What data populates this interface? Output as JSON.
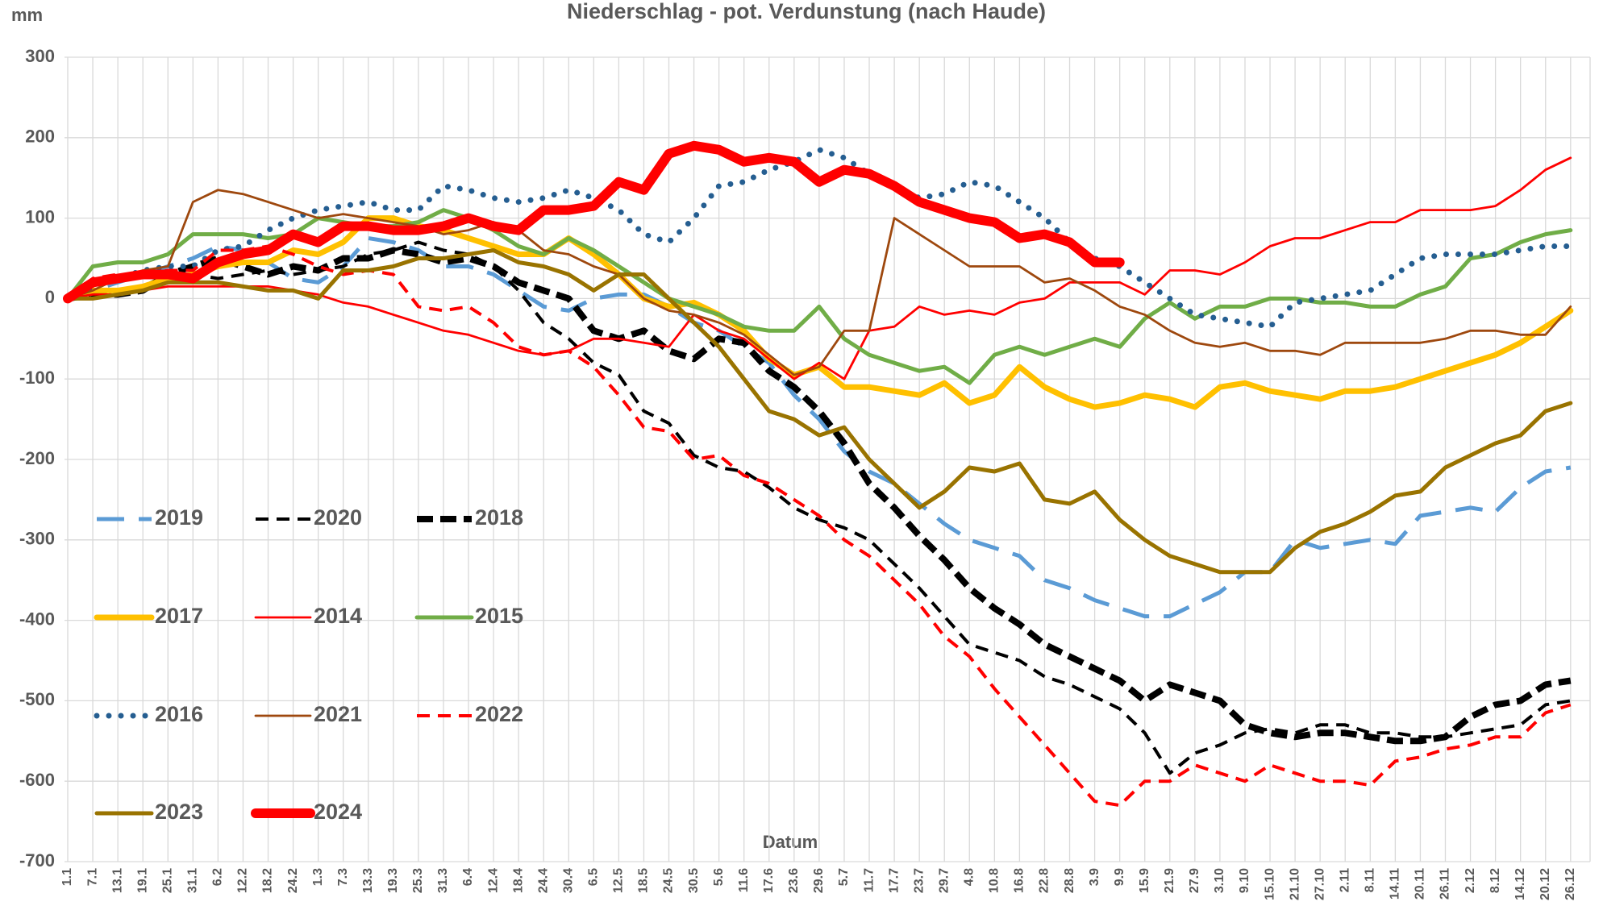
{
  "chart_data": {
    "type": "line",
    "title": "Niederschlag - pot. Verdunstung (nach Haude)",
    "y_label": "mm",
    "x_label": "Datum",
    "categories": [
      "1.1",
      "7.1",
      "13.1",
      "19.1",
      "25.1",
      "31.1",
      "6.2",
      "12.2",
      "18.2",
      "24.2",
      "1.3",
      "7.3",
      "13.3",
      "19.3",
      "25.3",
      "31.3",
      "6.4",
      "12.4",
      "18.4",
      "24.4",
      "30.4",
      "6.5",
      "12.5",
      "18.5",
      "24.5",
      "30.5",
      "5.6",
      "11.6",
      "17.6",
      "23.6",
      "29.6",
      "5.7",
      "11.7",
      "17.7",
      "23.7",
      "29.7",
      "4.8",
      "10.8",
      "16.8",
      "22.8",
      "28.8",
      "3.9",
      "9.9",
      "15.9",
      "21.9",
      "27.9",
      "3.10",
      "9.10",
      "15.10",
      "21.10",
      "27.10",
      "2.11",
      "8.11",
      "14.11",
      "20.11",
      "26.11",
      "2.12",
      "8.12",
      "14.12",
      "20.12",
      "26.12"
    ],
    "ylim": [
      -700,
      300
    ],
    "yticks": [
      300,
      200,
      100,
      0,
      -100,
      -200,
      -300,
      -400,
      -500,
      -600,
      -700
    ],
    "grid": true,
    "series": [
      {
        "name": "2019",
        "color": "#5b9bd5",
        "line_style": "dash-long",
        "values": [
          0,
          10,
          20,
          30,
          40,
          50,
          65,
          60,
          45,
          25,
          20,
          40,
          75,
          70,
          60,
          40,
          40,
          30,
          10,
          -10,
          -15,
          0,
          5,
          5,
          -10,
          -30,
          -40,
          -60,
          -80,
          -120,
          -150,
          -190,
          -215,
          -230,
          -255,
          -280,
          -300,
          -310,
          -320,
          -350,
          -360,
          -375,
          -385,
          -395,
          -395,
          -380,
          -365,
          -340,
          -340,
          -300,
          -310,
          -305,
          -300,
          -305,
          -270,
          -265,
          -260,
          -265,
          -235,
          -215,
          -210
        ]
      },
      {
        "name": "2020",
        "color": "#000000",
        "line_style": "dash",
        "values": [
          0,
          5,
          10,
          15,
          30,
          30,
          25,
          30,
          35,
          30,
          35,
          40,
          55,
          60,
          70,
          60,
          55,
          40,
          10,
          -30,
          -50,
          -80,
          -95,
          -140,
          -155,
          -195,
          -210,
          -215,
          -235,
          -260,
          -275,
          -285,
          -300,
          -330,
          -360,
          -395,
          -430,
          -440,
          -450,
          -470,
          -480,
          -495,
          -510,
          -540,
          -590,
          -565,
          -555,
          -540,
          -535,
          -540,
          -530,
          -530,
          -540,
          -540,
          -545,
          -545,
          -540,
          -535,
          -530,
          -505,
          -500
        ]
      },
      {
        "name": "2018",
        "color": "#000000",
        "line_style": "dash-heavy",
        "values": [
          0,
          5,
          5,
          10,
          30,
          40,
          50,
          40,
          30,
          40,
          35,
          50,
          50,
          60,
          55,
          45,
          50,
          40,
          20,
          10,
          0,
          -40,
          -50,
          -40,
          -65,
          -75,
          -50,
          -55,
          -90,
          -110,
          -140,
          -180,
          -230,
          -260,
          -295,
          -325,
          -360,
          -385,
          -405,
          -430,
          -445,
          -460,
          -475,
          -500,
          -480,
          -490,
          -500,
          -530,
          -540,
          -545,
          -540,
          -540,
          -545,
          -550,
          -550,
          -545,
          -520,
          -505,
          -500,
          -480,
          -475
        ]
      },
      {
        "name": "2017",
        "color": "#ffc000",
        "line_style": "solid-heavy",
        "values": [
          0,
          10,
          10,
          15,
          25,
          30,
          40,
          45,
          45,
          60,
          55,
          70,
          100,
          100,
          90,
          85,
          75,
          65,
          55,
          55,
          75,
          55,
          30,
          0,
          -10,
          -5,
          -20,
          -40,
          -75,
          -95,
          -85,
          -110,
          -110,
          -115,
          -120,
          -105,
          -130,
          -120,
          -85,
          -110,
          -125,
          -135,
          -130,
          -120,
          -125,
          -135,
          -110,
          -105,
          -115,
          -120,
          -125,
          -115,
          -115,
          -110,
          -100,
          -90,
          -80,
          -70,
          -55,
          -35,
          -15
        ]
      },
      {
        "name": "2014",
        "color": "#ff0000",
        "line_style": "solid",
        "values": [
          0,
          5,
          5,
          10,
          15,
          15,
          15,
          15,
          15,
          10,
          5,
          -5,
          -10,
          -20,
          -30,
          -40,
          -45,
          -55,
          -65,
          -70,
          -65,
          -50,
          -50,
          -55,
          -60,
          -20,
          -40,
          -50,
          -75,
          -100,
          -80,
          -100,
          -40,
          -35,
          -10,
          -20,
          -15,
          -20,
          -5,
          0,
          20,
          20,
          20,
          5,
          35,
          35,
          30,
          45,
          65,
          75,
          75,
          85,
          95,
          95,
          110,
          110,
          110,
          115,
          135,
          160,
          175
        ]
      },
      {
        "name": "2015",
        "color": "#70ad47",
        "line_style": "solid-medium",
        "values": [
          0,
          40,
          45,
          45,
          55,
          80,
          80,
          80,
          75,
          80,
          100,
          95,
          90,
          90,
          95,
          110,
          100,
          85,
          65,
          55,
          75,
          60,
          40,
          20,
          0,
          -10,
          -20,
          -35,
          -40,
          -40,
          -10,
          -50,
          -70,
          -80,
          -90,
          -85,
          -105,
          -70,
          -60,
          -70,
          -60,
          -50,
          -60,
          -25,
          -5,
          -25,
          -10,
          -10,
          0,
          0,
          -5,
          -5,
          -10,
          -10,
          5,
          15,
          50,
          55,
          70,
          80,
          85
        ]
      },
      {
        "name": "2016",
        "color": "#255e91",
        "line_style": "dot",
        "values": [
          0,
          15,
          25,
          35,
          40,
          40,
          60,
          65,
          85,
          100,
          110,
          115,
          120,
          110,
          110,
          140,
          135,
          125,
          120,
          125,
          135,
          125,
          110,
          80,
          70,
          100,
          140,
          145,
          160,
          170,
          185,
          175,
          155,
          140,
          125,
          130,
          145,
          140,
          120,
          100,
          70,
          50,
          40,
          20,
          0,
          -20,
          -25,
          -30,
          -35,
          -5,
          0,
          5,
          10,
          30,
          50,
          55,
          55,
          55,
          60,
          65,
          65
        ]
      },
      {
        "name": "2021",
        "color": "#9e480e",
        "line_style": "solid",
        "values": [
          0,
          10,
          25,
          35,
          40,
          120,
          135,
          130,
          120,
          110,
          100,
          105,
          100,
          95,
          90,
          80,
          85,
          95,
          85,
          60,
          55,
          40,
          30,
          0,
          -15,
          -20,
          -30,
          -45,
          -70,
          -95,
          -85,
          -40,
          -40,
          100,
          80,
          60,
          40,
          40,
          40,
          20,
          25,
          10,
          -10,
          -20,
          -40,
          -55,
          -60,
          -55,
          -65,
          -65,
          -70,
          -55,
          -55,
          -55,
          -55,
          -50,
          -40,
          -40,
          -45,
          -45,
          -10
        ]
      },
      {
        "name": "2022",
        "color": "#ff0000",
        "line_style": "dash",
        "values": [
          0,
          25,
          30,
          30,
          35,
          35,
          60,
          60,
          65,
          55,
          40,
          30,
          35,
          30,
          -10,
          -15,
          -10,
          -30,
          -60,
          -70,
          -65,
          -85,
          -120,
          -160,
          -165,
          -200,
          -195,
          -220,
          -230,
          -250,
          -270,
          -300,
          -320,
          -350,
          -380,
          -420,
          -445,
          -485,
          -520,
          -555,
          -590,
          -625,
          -630,
          -600,
          -600,
          -580,
          -590,
          -600,
          -580,
          -590,
          -600,
          -600,
          -605,
          -575,
          -570,
          -560,
          -555,
          -545,
          -545,
          -515,
          -505
        ]
      },
      {
        "name": "2023",
        "color": "#997300",
        "line_style": "solid-medium",
        "values": [
          0,
          0,
          5,
          10,
          20,
          20,
          20,
          15,
          10,
          10,
          0,
          35,
          35,
          40,
          50,
          50,
          55,
          60,
          45,
          40,
          30,
          10,
          30,
          30,
          0,
          -30,
          -60,
          -100,
          -140,
          -150,
          -170,
          -160,
          -200,
          -230,
          -260,
          -240,
          -210,
          -215,
          -205,
          -250,
          -255,
          -240,
          -275,
          -300,
          -320,
          -330,
          -340,
          -340,
          -340,
          -310,
          -290,
          -280,
          -265,
          -245,
          -240,
          -210,
          -195,
          -180,
          -170,
          -140,
          -130
        ]
      },
      {
        "name": "2024",
        "color": "#ff0000",
        "line_style": "solid-thick",
        "values": [
          0,
          20,
          25,
          30,
          30,
          25,
          45,
          55,
          60,
          80,
          70,
          90,
          90,
          85,
          85,
          90,
          100,
          90,
          85,
          110,
          110,
          115,
          145,
          135,
          180,
          190,
          185,
          170,
          175,
          170,
          145,
          160,
          155,
          140,
          120,
          110,
          100,
          95,
          75,
          80,
          70,
          45,
          45,
          null,
          null,
          null,
          null,
          null,
          null,
          null,
          null,
          null,
          null,
          null,
          null,
          null,
          null,
          null,
          null,
          null,
          null
        ]
      }
    ]
  }
}
